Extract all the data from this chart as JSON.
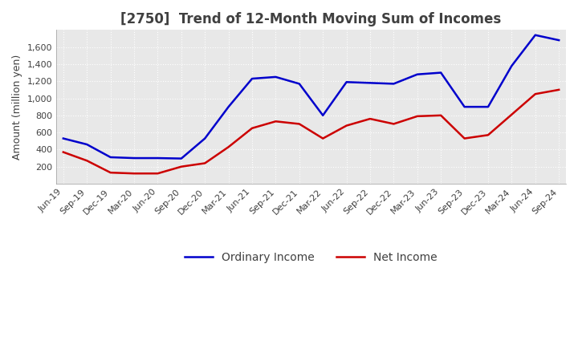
{
  "title": "[2750]  Trend of 12-Month Moving Sum of Incomes",
  "ylabel": "Amount (million yen)",
  "x_labels": [
    "Jun-19",
    "Sep-19",
    "Dec-19",
    "Mar-20",
    "Jun-20",
    "Sep-20",
    "Dec-20",
    "Mar-21",
    "Jun-21",
    "Sep-21",
    "Dec-21",
    "Mar-22",
    "Jun-22",
    "Sep-22",
    "Dec-22",
    "Mar-23",
    "Jun-23",
    "Sep-23",
    "Dec-23",
    "Mar-24",
    "Jun-24",
    "Sep-24"
  ],
  "ordinary_income": [
    530,
    460,
    310,
    300,
    300,
    295,
    530,
    900,
    1230,
    1250,
    1170,
    800,
    1190,
    1180,
    1170,
    1280,
    1300,
    900,
    900,
    1380,
    1740,
    1680
  ],
  "net_income": [
    370,
    270,
    130,
    120,
    120,
    200,
    240,
    430,
    650,
    730,
    700,
    530,
    680,
    760,
    700,
    790,
    800,
    530,
    570,
    810,
    1050,
    1100
  ],
  "ordinary_color": "#0000cc",
  "net_color": "#cc0000",
  "ylim": [
    0,
    1800
  ],
  "yticks": [
    200,
    400,
    600,
    800,
    1000,
    1200,
    1400,
    1600
  ],
  "background_color": "#ffffff",
  "plot_bg_color": "#e8e8e8",
  "grid_color": "#ffffff",
  "title_color": "#404040",
  "title_fontsize": 12,
  "label_fontsize": 9,
  "tick_fontsize": 8
}
